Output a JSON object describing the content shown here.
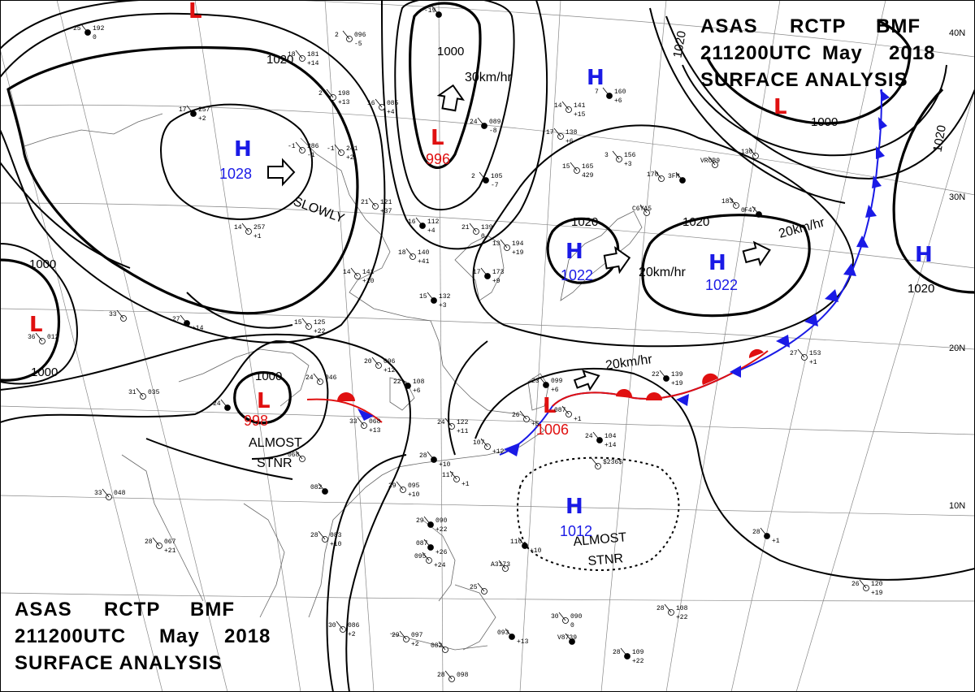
{
  "title_top": {
    "line1": [
      "ASAS",
      "RCTP",
      "BMF"
    ],
    "line2": [
      "211200UTC",
      "May",
      "2018"
    ],
    "line3": "SURFACE ANALYSIS"
  },
  "title_bottom": {
    "line1": [
      "ASAS",
      "RCTP",
      "BMF"
    ],
    "line2": [
      "211200UTC",
      "May",
      "2018"
    ],
    "line3": "SURFACE ANALYSIS"
  },
  "colors": {
    "high": "#1a1ae6",
    "low": "#e01010",
    "warm_front": "#e01010",
    "cold_front": "#1a1ae6",
    "isobar": "#000000",
    "grid": "#888888"
  },
  "pressure_systems": [
    {
      "id": "h-mongolia",
      "type": "H",
      "value": "1028"
    },
    {
      "id": "h-japan-sea",
      "type": "H",
      "value": "1022"
    },
    {
      "id": "h-pacific-east",
      "type": "H",
      "value": "1022"
    },
    {
      "id": "h-south",
      "type": "H",
      "value": "1012"
    },
    {
      "id": "h-north-pacific",
      "type": "H",
      "value": ""
    },
    {
      "id": "h-far-east",
      "type": "H",
      "value": ""
    },
    {
      "id": "l-north",
      "type": "L",
      "value": "996"
    },
    {
      "id": "l-india",
      "type": "L",
      "value": ""
    },
    {
      "id": "l-burma",
      "type": "L",
      "value": "998"
    },
    {
      "id": "l-taiwan",
      "type": "L",
      "value": "1006"
    },
    {
      "id": "l-top",
      "type": "L",
      "value": ""
    },
    {
      "id": "l-ne",
      "type": "L",
      "value": ""
    }
  ],
  "isobar_labels": [
    "1020",
    "1000",
    "1000",
    "1000",
    "1000",
    "1020",
    "1020",
    "1020",
    "1000",
    "1020",
    "1020"
  ],
  "motion_labels": {
    "north_low": "30km/hr",
    "japan_high": "20km/hr",
    "east_high": "20km/hr",
    "taiwan_low": "20km/hr",
    "slowly": "SLOWLY",
    "almost_stnr_1": "ALMOST",
    "almost_stnr_2": "STNR",
    "almost_stnr_3": "ALMOST",
    "almost_stnr_4": "STNR"
  },
  "latitudes": [
    "40N",
    "30N",
    "20N",
    "10N"
  ],
  "stations": [
    {
      "t": "25",
      "p": "192",
      "w": "0"
    },
    {
      "t": "18",
      "p": "181",
      "w": "+14"
    },
    {
      "t": "2",
      "p": "096",
      "w": "-5"
    },
    {
      "t": "-19",
      "p": "",
      "w": ""
    },
    {
      "t": "16",
      "p": "085",
      "w": "+4"
    },
    {
      "t": "2",
      "p": "198",
      "w": "+13"
    },
    {
      "t": "17",
      "p": "257",
      "w": "+2"
    },
    {
      "t": "-1",
      "p": "286",
      "w": "-1"
    },
    {
      "t": "-1",
      "p": "241",
      "w": "+2"
    },
    {
      "t": "24",
      "p": "089",
      "w": "-8"
    },
    {
      "t": "14",
      "p": "141",
      "w": "+15"
    },
    {
      "t": "17",
      "p": "138",
      "w": "+6"
    },
    {
      "t": "7",
      "p": "160",
      "w": "+6"
    },
    {
      "t": "3",
      "p": "156",
      "w": "+3"
    },
    {
      "t": "15",
      "p": "165",
      "w": "429"
    },
    {
      "t": "2",
      "p": "105",
      "w": "-7"
    },
    {
      "t": "21",
      "p": "121",
      "w": "+37"
    },
    {
      "t": "14",
      "p": "257",
      "w": "+1"
    },
    {
      "t": "16",
      "p": "112",
      "w": "+4"
    },
    {
      "t": "21",
      "p": "139",
      "w": "0"
    },
    {
      "t": "13",
      "p": "194",
      "w": "+19"
    },
    {
      "t": "17",
      "p": "173",
      "w": "+9"
    },
    {
      "t": "14",
      "p": "141",
      "w": "+10"
    },
    {
      "t": "18",
      "p": "140",
      "w": "+41"
    },
    {
      "t": "15",
      "p": "132",
      "w": "+3"
    },
    {
      "t": "33",
      "p": "",
      "w": ""
    },
    {
      "t": "36",
      "p": "012",
      "w": ""
    },
    {
      "t": "27",
      "p": "",
      "w": "+14"
    },
    {
      "t": "15",
      "p": "125",
      "w": "+22"
    },
    {
      "t": "20",
      "p": "096",
      "w": "+12"
    },
    {
      "t": "22",
      "p": "108",
      "w": "+6"
    },
    {
      "t": "31",
      "p": "035",
      "w": ""
    },
    {
      "t": "24",
      "p": "046",
      "w": ""
    },
    {
      "t": "24",
      "p": "",
      "w": ""
    },
    {
      "t": "33",
      "p": "068",
      "w": "+13"
    },
    {
      "t": "24",
      "p": "122",
      "w": "+11"
    },
    {
      "t": "23",
      "p": "099",
      "w": "+6"
    },
    {
      "t": "26",
      "p": "",
      "w": "+5"
    },
    {
      "t": "087",
      "p": "",
      "w": "+1"
    },
    {
      "t": "24",
      "p": "104",
      "w": "+14"
    },
    {
      "t": "",
      "p": "$236$",
      "w": ""
    },
    {
      "t": "107",
      "p": "",
      "w": "+12"
    },
    {
      "t": "28",
      "p": "",
      "w": "+10"
    },
    {
      "t": "117",
      "p": "",
      "w": "+1"
    },
    {
      "t": "068",
      "p": "",
      "w": ""
    },
    {
      "t": "082",
      "p": "",
      "w": ""
    },
    {
      "t": "29",
      "p": "095",
      "w": "+10"
    },
    {
      "t": "33",
      "p": "048",
      "w": ""
    },
    {
      "t": "22",
      "p": "139",
      "w": "+19"
    },
    {
      "t": "27",
      "p": "153",
      "w": "+1"
    },
    {
      "t": "C6YA5",
      "p": "",
      "w": ""
    },
    {
      "t": "3FM",
      "p": "",
      "w": ""
    },
    {
      "t": "VROB9",
      "p": "",
      "w": ""
    },
    {
      "t": "183",
      "p": "",
      "w": "0"
    },
    {
      "t": "F47",
      "p": "",
      "w": ""
    },
    {
      "t": "130",
      "p": "",
      "w": ""
    },
    {
      "t": "170",
      "p": "",
      "w": ""
    },
    {
      "t": "29",
      "p": "090",
      "w": "+22"
    },
    {
      "t": "28",
      "p": "083",
      "w": "+10"
    },
    {
      "t": "28",
      "p": "067",
      "w": "+21"
    },
    {
      "t": "110",
      "p": "",
      "w": "+10"
    },
    {
      "t": "A3173",
      "p": "",
      "w": ""
    },
    {
      "t": "25",
      "p": "",
      "w": ""
    },
    {
      "t": "087",
      "p": "",
      "w": "+26"
    },
    {
      "t": "095",
      "p": "",
      "w": "+24"
    },
    {
      "t": "30",
      "p": "090",
      "w": "0"
    },
    {
      "t": "V8739",
      "p": "",
      "w": ""
    },
    {
      "t": "29",
      "p": "097",
      "w": "+2"
    },
    {
      "t": "30",
      "p": "086",
      "w": "+2"
    },
    {
      "t": "093",
      "p": "",
      "w": "+13"
    },
    {
      "t": "082",
      "p": "",
      "w": ""
    },
    {
      "t": "28",
      "p": "098",
      "w": ""
    },
    {
      "t": "28",
      "p": "109",
      "w": "+22"
    },
    {
      "t": "28",
      "p": "108",
      "w": "+22"
    },
    {
      "t": "26",
      "p": "120",
      "w": "+19"
    },
    {
      "t": "28",
      "p": "",
      "w": "+1"
    }
  ]
}
